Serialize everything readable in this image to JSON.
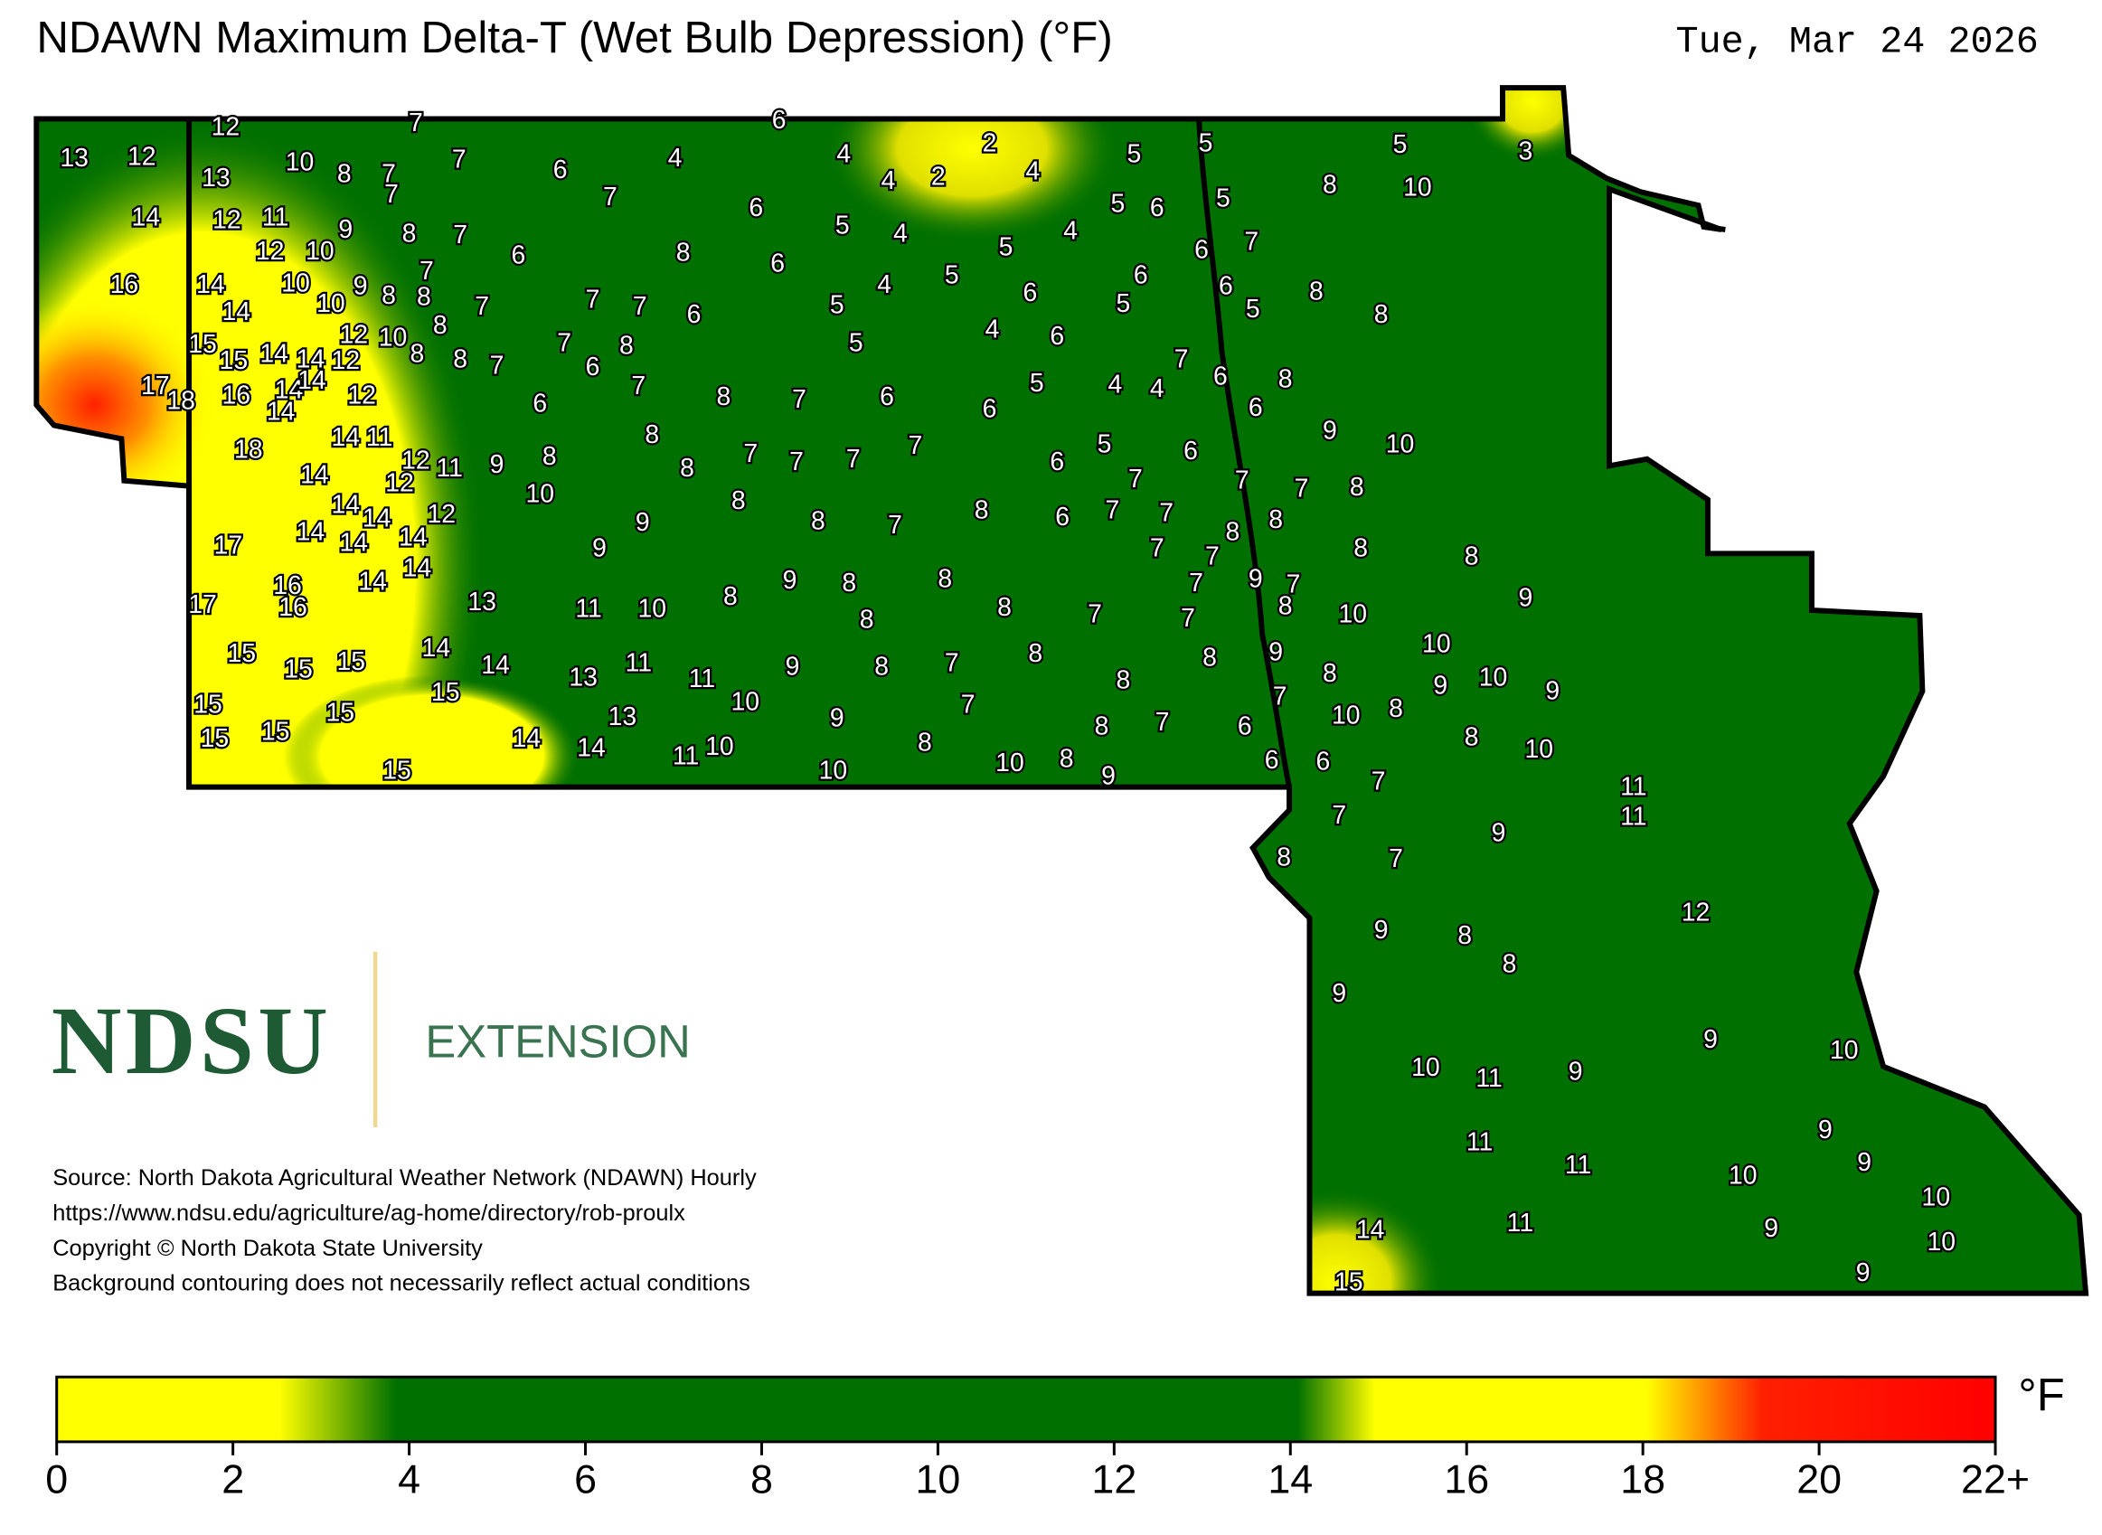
{
  "title": "NDAWN Maximum Delta-T (Wet Bulb Depression) (°F)",
  "date": "Tue, Mar 24 2026",
  "logo": {
    "name": "NDSU",
    "unit": "EXTENSION"
  },
  "source_lines": [
    "Source: North Dakota Agricultural Weather Network (NDAWN) Hourly",
    "https://www.ndsu.edu/agriculture/ag-home/directory/rob-proulx",
    "Copyright © North Dakota State University",
    "Background contouring does not necessarily reflect actual conditions"
  ],
  "station_values": [
    12,
    7,
    6,
    13,
    12,
    13,
    10,
    8,
    7,
    7,
    7,
    6,
    4,
    4,
    2,
    4,
    2,
    4,
    5,
    5,
    5,
    3,
    7,
    6,
    8,
    10,
    5,
    6,
    5,
    14,
    12,
    11,
    9,
    8,
    7,
    5,
    4,
    4,
    5,
    12,
    10,
    6,
    8,
    6,
    6,
    7,
    7,
    16,
    14,
    10,
    9,
    8,
    8,
    7,
    4,
    5,
    6,
    6,
    8,
    14,
    10,
    7,
    7,
    6,
    5,
    6,
    5,
    5,
    8,
    8,
    12,
    10,
    4,
    6,
    15,
    15,
    14,
    14,
    12,
    8,
    8,
    7,
    7,
    8,
    5,
    6,
    7,
    6,
    8,
    17,
    18,
    16,
    14,
    14,
    12,
    7,
    8,
    7,
    6,
    5,
    4,
    4,
    6,
    6,
    14,
    6,
    18,
    14,
    11,
    8,
    9,
    10,
    5,
    6,
    12,
    11,
    9,
    8,
    8,
    7,
    7,
    7,
    7,
    6,
    12,
    14,
    7,
    7,
    7,
    8,
    10,
    8,
    14,
    14,
    12,
    14,
    14,
    14,
    9,
    8,
    7,
    8,
    6,
    7,
    7,
    8,
    8,
    17,
    9,
    7,
    7,
    8,
    8,
    14,
    14,
    7,
    9,
    7,
    16,
    16,
    13,
    17,
    11,
    10,
    8,
    9,
    8,
    8,
    8,
    8,
    7,
    7,
    8,
    10,
    9,
    10,
    14,
    15,
    15,
    15,
    14,
    11,
    13,
    11,
    9,
    8,
    7,
    8,
    8,
    8,
    9,
    8,
    10,
    9,
    9,
    15,
    15,
    10,
    7,
    7,
    10,
    8,
    8,
    10,
    15,
    13,
    9,
    8,
    7,
    6,
    15,
    15,
    14,
    14,
    11,
    10,
    8,
    10,
    8,
    10,
    9,
    6,
    6,
    15,
    7,
    11,
    11,
    7,
    9,
    8,
    7,
    12,
    9,
    8,
    8,
    9,
    9,
    10,
    10,
    11,
    9,
    9,
    11,
    9,
    11,
    10,
    10,
    9,
    14,
    11,
    10,
    9,
    15
  ],
  "colorbar": {
    "unit": "°F",
    "lim": [
      0,
      22
    ],
    "ticks": [
      0,
      2,
      4,
      6,
      8,
      10,
      12,
      14,
      16,
      18,
      20,
      {
        "value": 22,
        "label": "22+"
      }
    ]
  }
}
